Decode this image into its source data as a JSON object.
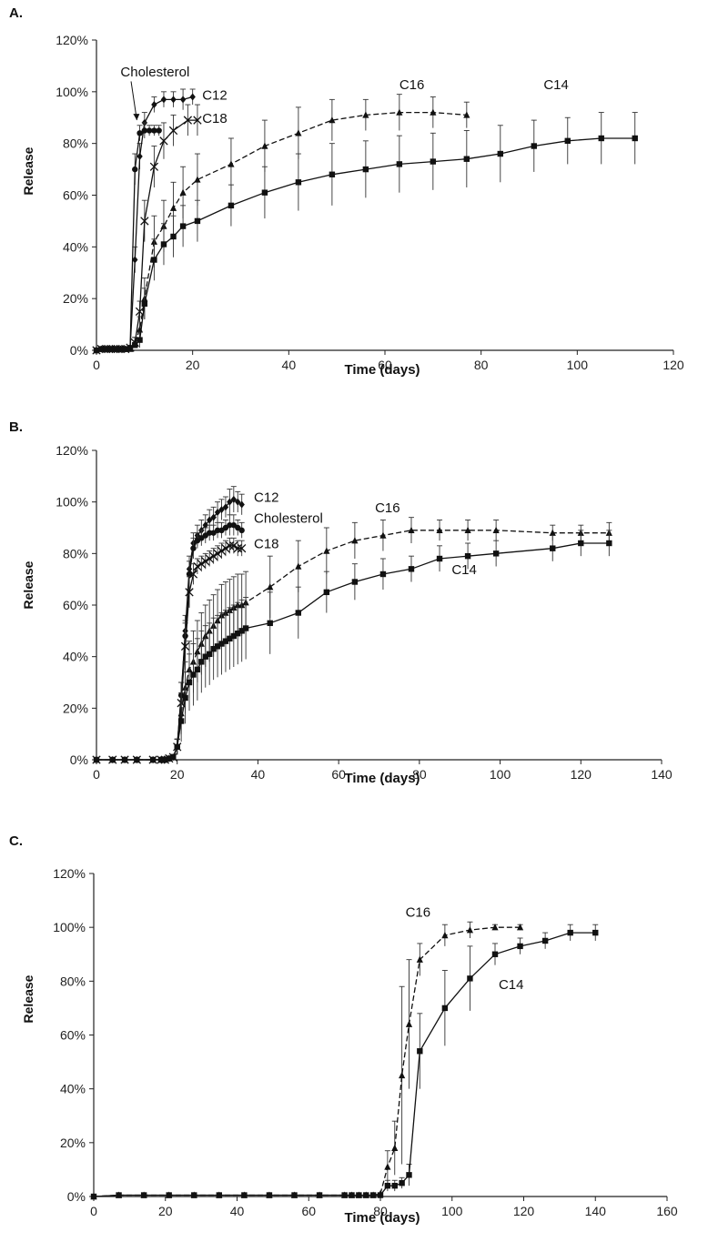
{
  "chart_data": [
    {
      "panel": "A.",
      "type": "line",
      "xlabel": "Time (days)",
      "ylabel": "Release",
      "xlim": [
        0,
        120
      ],
      "ylim": [
        0,
        120
      ],
      "xticks": [
        "0",
        "20",
        "40",
        "60",
        "80",
        "100",
        "120"
      ],
      "yticks": [
        "0%",
        "20%",
        "40%",
        "60%",
        "80%",
        "100%",
        "120%"
      ],
      "series": [
        {
          "name": "C12",
          "marker": "diamond",
          "dash": "solid",
          "x": [
            0,
            1,
            2,
            3,
            4,
            5,
            6,
            7,
            8,
            9,
            10,
            12,
            14,
            16,
            18,
            20
          ],
          "y": [
            0,
            0.5,
            0.5,
            0.5,
            0.5,
            0.5,
            0.5,
            1,
            35,
            75,
            88,
            95,
            97,
            97,
            97,
            98
          ],
          "err": [
            0,
            0,
            0,
            0,
            0,
            0,
            0,
            0,
            5,
            5,
            4,
            3,
            3,
            3,
            4,
            3
          ]
        },
        {
          "name": "Cholesterol",
          "marker": "circle",
          "dash": "solid",
          "x": [
            0,
            1,
            2,
            3,
            4,
            5,
            6,
            7,
            8,
            9,
            10,
            11,
            12,
            13
          ],
          "y": [
            0,
            0.5,
            0.5,
            0.5,
            0.5,
            0.5,
            0.5,
            1,
            70,
            84,
            85,
            85,
            85,
            85
          ],
          "err": [
            0,
            0,
            0,
            0,
            0,
            0,
            0,
            0,
            6,
            3,
            3,
            2,
            2,
            2
          ]
        },
        {
          "name": "C18",
          "marker": "x",
          "dash": "solid",
          "x": [
            0,
            1,
            2,
            3,
            4,
            5,
            6,
            7,
            8,
            9,
            10,
            12,
            14,
            16,
            19,
            21
          ],
          "y": [
            0,
            0.5,
            0.5,
            0.5,
            0.5,
            0.5,
            0.5,
            1,
            3,
            15,
            50,
            71,
            81,
            85,
            89,
            89
          ],
          "err": [
            0,
            0,
            0,
            0,
            0,
            0,
            0,
            0,
            2,
            4,
            8,
            8,
            7,
            6,
            6,
            6
          ]
        },
        {
          "name": "C16",
          "marker": "triangle",
          "dash": "dashed",
          "x": [
            0,
            1,
            2,
            3,
            4,
            5,
            6,
            7,
            8,
            9,
            10,
            12,
            14,
            16,
            18,
            21,
            28,
            35,
            42,
            49,
            56,
            63,
            70,
            77
          ],
          "y": [
            0,
            0.5,
            0.5,
            0.5,
            0.5,
            0.5,
            0.5,
            1,
            3,
            8,
            20,
            42,
            48,
            55,
            61,
            66,
            72,
            79,
            84,
            89,
            91,
            92,
            92,
            91
          ],
          "err": [
            0,
            0,
            0,
            0,
            0,
            0,
            0,
            0,
            2,
            5,
            8,
            10,
            10,
            10,
            10,
            10,
            10,
            10,
            10,
            8,
            6,
            7,
            6,
            5
          ]
        },
        {
          "name": "C14",
          "marker": "square",
          "dash": "solid",
          "x": [
            0,
            1,
            2,
            3,
            4,
            5,
            6,
            7,
            8,
            9,
            10,
            12,
            14,
            16,
            18,
            21,
            28,
            35,
            42,
            49,
            56,
            63,
            70,
            77,
            84,
            91,
            98,
            105,
            112
          ],
          "y": [
            0,
            0.5,
            0.5,
            0.5,
            0.5,
            0.5,
            0.5,
            0.5,
            2,
            4,
            18,
            35,
            41,
            44,
            48,
            50,
            56,
            61,
            65,
            68,
            70,
            72,
            73,
            74,
            76,
            79,
            81,
            82,
            82
          ],
          "err": [
            0,
            0,
            0,
            0,
            0,
            0,
            0,
            0,
            1,
            3,
            6,
            8,
            8,
            8,
            8,
            8,
            8,
            10,
            11,
            12,
            11,
            11,
            11,
            11,
            11,
            10,
            9,
            10,
            10
          ]
        }
      ],
      "annotations": [
        {
          "text": "Cholesterol",
          "x": 5,
          "y": 106
        },
        {
          "text": "C12",
          "x": 22,
          "y": 97
        },
        {
          "text": "C18",
          "x": 22,
          "y": 88
        },
        {
          "text": "C16",
          "x": 63,
          "y": 101
        },
        {
          "text": "C14",
          "x": 93,
          "y": 101
        }
      ]
    },
    {
      "panel": "B.",
      "type": "line",
      "xlabel": "Time (days)",
      "ylabel": "Release",
      "xlim": [
        0,
        140
      ],
      "ylim": [
        0,
        120
      ],
      "xticks": [
        "0",
        "20",
        "40",
        "60",
        "80",
        "100",
        "120",
        "140"
      ],
      "yticks": [
        "0%",
        "20%",
        "40%",
        "60%",
        "80%",
        "100%",
        "120%"
      ],
      "series": [
        {
          "name": "C12",
          "marker": "diamond",
          "dash": "solid",
          "x": [
            0,
            4,
            7,
            10,
            14,
            16,
            17,
            18,
            19,
            20,
            21,
            22,
            23,
            24,
            25,
            26,
            27,
            28,
            29,
            30,
            31,
            32,
            33,
            34,
            35,
            36
          ],
          "y": [
            0,
            0,
            0,
            0,
            0,
            0,
            0,
            0.5,
            1,
            5,
            25,
            50,
            74,
            84,
            87,
            89,
            91,
            93,
            94,
            96,
            97,
            98,
            100,
            101,
            100,
            99
          ],
          "err": [
            0,
            0,
            0,
            0,
            0,
            0,
            0,
            0,
            1,
            3,
            5,
            6,
            5,
            4,
            4,
            4,
            4,
            4,
            4,
            4,
            4,
            4,
            5,
            5,
            4,
            4
          ]
        },
        {
          "name": "Cholesterol",
          "marker": "circle",
          "dash": "solid",
          "x": [
            0,
            4,
            7,
            10,
            14,
            16,
            17,
            18,
            19,
            20,
            21,
            22,
            23,
            24,
            25,
            26,
            27,
            28,
            29,
            30,
            31,
            32,
            33,
            34,
            35,
            36
          ],
          "y": [
            0,
            0,
            0,
            0,
            0,
            0,
            0,
            0.5,
            1,
            5,
            25,
            48,
            72,
            82,
            85,
            86,
            87,
            88,
            88,
            89,
            89,
            90,
            91,
            91,
            90,
            89
          ],
          "err": [
            0,
            0,
            0,
            0,
            0,
            0,
            0,
            0,
            1,
            3,
            5,
            6,
            5,
            4,
            3,
            3,
            3,
            3,
            3,
            3,
            3,
            3,
            4,
            4,
            3,
            3
          ]
        },
        {
          "name": "C18",
          "marker": "x",
          "dash": "solid",
          "x": [
            0,
            4,
            7,
            10,
            14,
            16,
            17,
            18,
            19,
            20,
            21,
            22,
            23,
            24,
            25,
            26,
            27,
            28,
            29,
            30,
            31,
            32,
            33,
            34,
            35,
            36
          ],
          "y": [
            0,
            0,
            0,
            0,
            0,
            0,
            0,
            0.5,
            1,
            5,
            22,
            44,
            65,
            72,
            75,
            76,
            77,
            78,
            79,
            80,
            81,
            82,
            83,
            83,
            82,
            82
          ],
          "err": [
            0,
            0,
            0,
            0,
            0,
            0,
            0,
            0,
            1,
            3,
            8,
            9,
            6,
            4,
            3,
            3,
            3,
            3,
            3,
            3,
            3,
            3,
            3,
            3,
            3,
            3
          ]
        },
        {
          "name": "C16",
          "marker": "triangle",
          "dash": "dashed",
          "x": [
            0,
            4,
            7,
            10,
            14,
            16,
            17,
            18,
            19,
            20,
            21,
            22,
            23,
            24,
            25,
            26,
            27,
            28,
            29,
            30,
            31,
            32,
            33,
            34,
            35,
            36,
            37,
            43,
            50,
            57,
            64,
            71,
            78,
            85,
            92,
            99,
            113,
            120,
            127
          ],
          "y": [
            0,
            0,
            0,
            0,
            0,
            0,
            0,
            0.5,
            1,
            5,
            18,
            28,
            35,
            38,
            42,
            45,
            48,
            50,
            52,
            54,
            56,
            57,
            58,
            59,
            60,
            60,
            61,
            67,
            75,
            81,
            85,
            87,
            89,
            89,
            89,
            89,
            88,
            88,
            88
          ],
          "err": [
            0,
            0,
            0,
            0,
            0,
            0,
            0,
            0,
            1,
            3,
            8,
            10,
            11,
            12,
            12,
            12,
            12,
            12,
            12,
            12,
            12,
            12,
            12,
            12,
            12,
            12,
            12,
            12,
            10,
            9,
            7,
            6,
            5,
            4,
            4,
            4,
            3,
            3,
            4
          ]
        },
        {
          "name": "C14",
          "marker": "square",
          "dash": "solid",
          "x": [
            0,
            4,
            7,
            10,
            14,
            16,
            17,
            18,
            19,
            20,
            21,
            22,
            23,
            24,
            25,
            26,
            27,
            28,
            29,
            30,
            31,
            32,
            33,
            34,
            35,
            36,
            37,
            43,
            50,
            57,
            64,
            71,
            78,
            85,
            92,
            99,
            113,
            120,
            127
          ],
          "y": [
            0,
            0,
            0,
            0,
            0,
            0,
            0,
            0.5,
            1,
            5,
            15,
            24,
            30,
            33,
            35,
            38,
            40,
            41,
            43,
            44,
            45,
            46,
            47,
            48,
            49,
            50,
            51,
            53,
            57,
            65,
            69,
            72,
            74,
            78,
            79,
            80,
            82,
            84,
            84
          ],
          "err": [
            0,
            0,
            0,
            0,
            0,
            0,
            0,
            0,
            1,
            3,
            8,
            10,
            11,
            12,
            12,
            12,
            12,
            12,
            12,
            12,
            12,
            12,
            12,
            12,
            12,
            12,
            12,
            12,
            10,
            8,
            7,
            6,
            5,
            5,
            5,
            5,
            5,
            5,
            5
          ]
        }
      ],
      "annotations": [
        {
          "text": "C12",
          "x": 39,
          "y": 100
        },
        {
          "text": "Cholesterol",
          "x": 39,
          "y": 92
        },
        {
          "text": "C18",
          "x": 39,
          "y": 82
        },
        {
          "text": "C16",
          "x": 69,
          "y": 96
        },
        {
          "text": "C14",
          "x": 88,
          "y": 72
        }
      ]
    },
    {
      "panel": "C.",
      "type": "line",
      "xlabel": "Time (days)",
      "ylabel": "Release",
      "xlim": [
        0,
        160
      ],
      "ylim": [
        0,
        120
      ],
      "xticks": [
        "0",
        "20",
        "40",
        "60",
        "80",
        "100",
        "120",
        "140",
        "160"
      ],
      "yticks": [
        "0%",
        "20%",
        "40%",
        "60%",
        "80%",
        "100%",
        "120%"
      ],
      "series": [
        {
          "name": "C16",
          "marker": "triangle",
          "dash": "dashed",
          "x": [
            0,
            7,
            14,
            21,
            28,
            35,
            42,
            49,
            56,
            63,
            70,
            72,
            74,
            76,
            78,
            80,
            82,
            84,
            86,
            88,
            91,
            98,
            105,
            112,
            119
          ],
          "y": [
            0,
            0.5,
            0.5,
            0.5,
            0.5,
            0.5,
            0.5,
            0.5,
            0.5,
            0.5,
            0.5,
            0.5,
            0.5,
            0.5,
            0.5,
            1,
            11,
            18,
            45,
            64,
            88,
            97,
            99,
            100,
            100
          ],
          "err": [
            0,
            0,
            0,
            0,
            0,
            0,
            0,
            0,
            0,
            0,
            0,
            0,
            0,
            0,
            0,
            0,
            6,
            10,
            33,
            24,
            6,
            4,
            3,
            1,
            1
          ]
        },
        {
          "name": "C14",
          "marker": "square",
          "dash": "solid",
          "x": [
            0,
            7,
            14,
            21,
            28,
            35,
            42,
            49,
            56,
            63,
            70,
            72,
            74,
            76,
            78,
            80,
            82,
            84,
            86,
            88,
            91,
            98,
            105,
            112,
            119,
            126,
            133,
            140
          ],
          "y": [
            0,
            0.5,
            0.5,
            0.5,
            0.5,
            0.5,
            0.5,
            0.5,
            0.5,
            0.5,
            0.5,
            0.5,
            0.5,
            0.5,
            0.5,
            0.5,
            4,
            4,
            5,
            8,
            54,
            70,
            81,
            90,
            93,
            95,
            98,
            98
          ],
          "err": [
            0,
            0,
            0,
            0,
            0,
            0,
            0,
            0,
            0,
            0,
            0,
            0,
            0,
            0,
            0,
            0,
            2,
            2,
            2,
            4,
            14,
            14,
            12,
            4,
            3,
            3,
            3,
            3
          ]
        }
      ],
      "annotations": [
        {
          "text": "C16",
          "x": 87,
          "y": 104
        },
        {
          "text": "C14",
          "x": 113,
          "y": 77
        }
      ]
    }
  ]
}
